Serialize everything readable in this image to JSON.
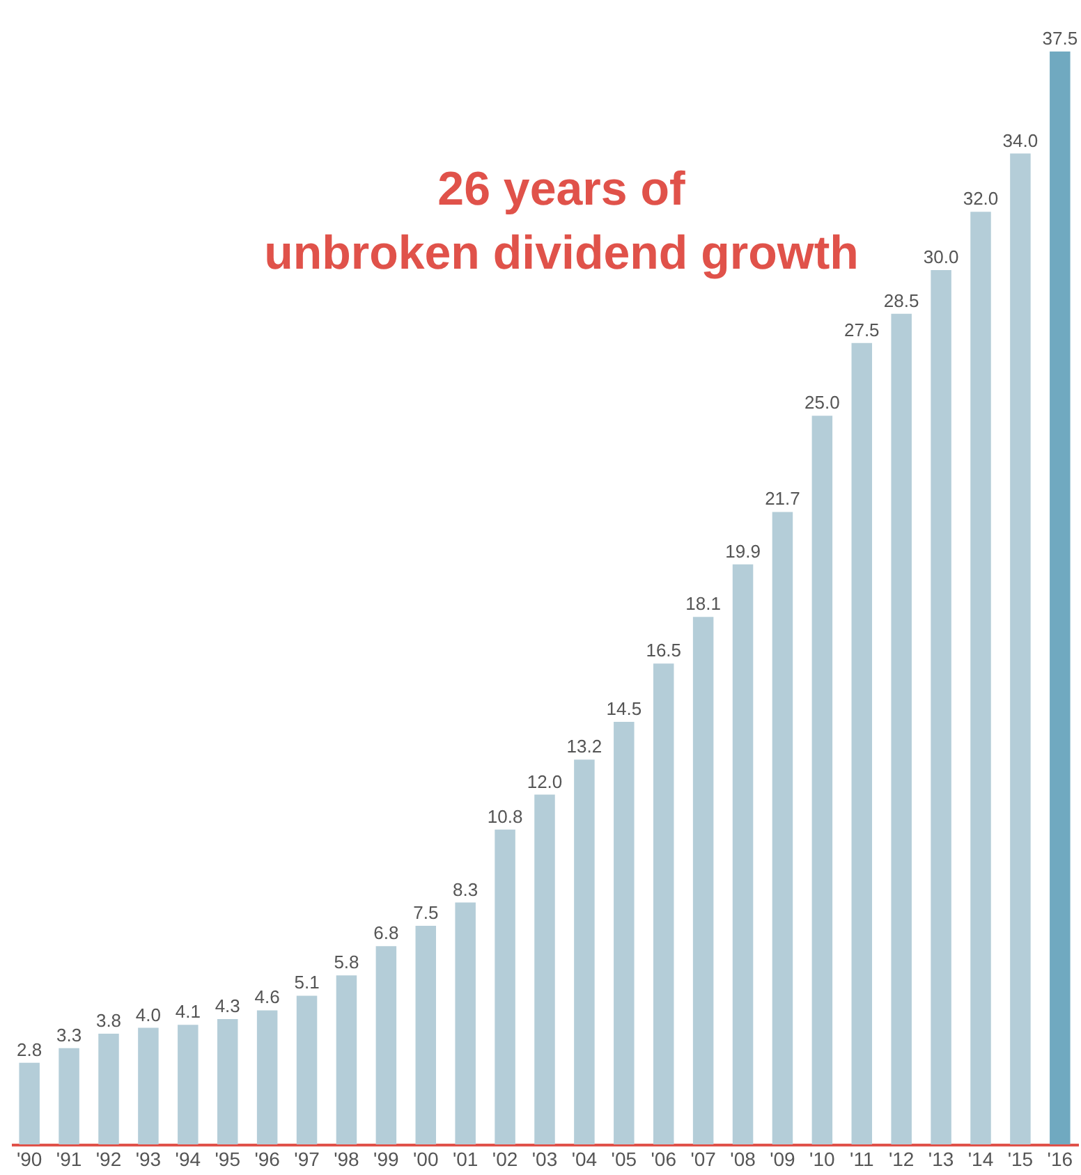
{
  "chart_data": {
    "type": "bar",
    "title": "26 years of unbroken dividend growth",
    "categories": [
      "'90",
      "'91",
      "'92",
      "'93",
      "'94",
      "'95",
      "'96",
      "'97",
      "'98",
      "'99",
      "'00",
      "'01",
      "'02",
      "'03",
      "'04",
      "'05",
      "'06",
      "'07",
      "'08",
      "'09",
      "'10",
      "'11",
      "'12",
      "'13",
      "'14",
      "'15",
      "'16"
    ],
    "values": [
      2.8,
      3.3,
      3.8,
      4.0,
      4.1,
      4.3,
      4.6,
      5.1,
      5.8,
      6.8,
      7.5,
      8.3,
      10.8,
      12.0,
      13.2,
      14.5,
      16.5,
      18.1,
      19.9,
      21.7,
      25.0,
      27.5,
      28.5,
      30.0,
      32.0,
      34.0,
      37.5
    ],
    "value_labels": [
      "2.8",
      "3.3",
      "3.8",
      "4.0",
      "4.1",
      "4.3",
      "4.6",
      "5.1",
      "5.8",
      "6.8",
      "7.5",
      "8.3",
      "10.8",
      "12.0",
      "13.2",
      "14.5",
      "16.5",
      "18.1",
      "19.9",
      "21.7",
      "25.0",
      "27.5",
      "28.5",
      "30.0",
      "32.0",
      "34.0",
      "37.5"
    ],
    "colors": [
      "#b4cdd8",
      "#b4cdd8",
      "#b4cdd8",
      "#b4cdd8",
      "#b4cdd8",
      "#b4cdd8",
      "#b4cdd8",
      "#b4cdd8",
      "#b4cdd8",
      "#b4cdd8",
      "#b4cdd8",
      "#b4cdd8",
      "#b4cdd8",
      "#b4cdd8",
      "#b4cdd8",
      "#b4cdd8",
      "#b4cdd8",
      "#b4cdd8",
      "#b4cdd8",
      "#b4cdd8",
      "#b4cdd8",
      "#b4cdd8",
      "#b4cdd8",
      "#b4cdd8",
      "#b4cdd8",
      "#b4cdd8",
      "#70a9c0"
    ],
    "tick_labels": "x",
    "grid": false
  }
}
